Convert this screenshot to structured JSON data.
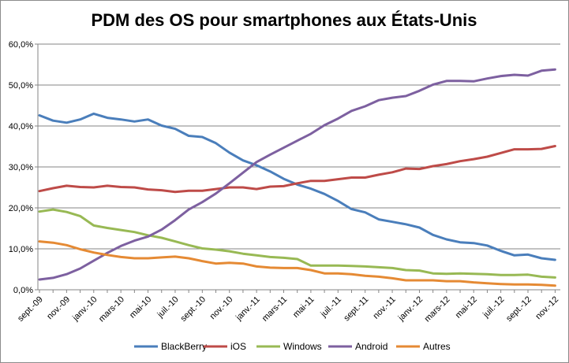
{
  "chart_data": {
    "type": "line",
    "title": "PDM des OS pour smartphones aux États-Unis",
    "xlabel": "",
    "ylabel": "",
    "ylim": [
      0,
      60
    ],
    "yticks": [
      "0,0%",
      "10,0%",
      "20,0%",
      "30,0%",
      "40,0%",
      "50,0%",
      "60,0%"
    ],
    "grid": true,
    "legend_position": "bottom",
    "x": [
      "sept.-09",
      "oct.-09",
      "nov.-09",
      "déc.-09",
      "janv.-10",
      "févr.-10",
      "mars-10",
      "avr.-10",
      "mai-10",
      "juin-10",
      "juil.-10",
      "août-10",
      "sept.-10",
      "oct.-10",
      "nov.-10",
      "déc.-10",
      "janv.-11",
      "févr.-11",
      "mars-11",
      "avr.-11",
      "mai-11",
      "juin-11",
      "juil.-11",
      "août-11",
      "sept.-11",
      "oct.-11",
      "nov.-11",
      "déc.-11",
      "janv.-12",
      "févr.-12",
      "mars-12",
      "avr.-12",
      "mai-12",
      "juin-12",
      "juil.-12",
      "août-12",
      "sept.-12",
      "oct.-12",
      "nov.-12"
    ],
    "xtick_labels": [
      "sept.-09",
      "nov.-09",
      "janv.-10",
      "mars-10",
      "mai-10",
      "juil.-10",
      "sept.-10",
      "nov.-10",
      "janv.-11",
      "mars-11",
      "mai-11",
      "juil.-11",
      "sept.-11",
      "nov.-11",
      "janv.-12",
      "mars-12",
      "mai-12",
      "juil.-12",
      "sept.-12",
      "nov.-12"
    ],
    "series": [
      {
        "name": "BlackBerry",
        "color": "#4a7ebb",
        "values": [
          42.6,
          41.3,
          40.8,
          41.6,
          43.0,
          42.0,
          41.6,
          41.1,
          41.6,
          40.1,
          39.3,
          37.6,
          37.3,
          35.8,
          33.5,
          31.6,
          30.4,
          28.9,
          27.1,
          25.7,
          24.7,
          23.4,
          21.7,
          19.7,
          18.9,
          17.2,
          16.6,
          16.0,
          15.2,
          13.4,
          12.3,
          11.6,
          11.4,
          10.8,
          9.5,
          8.4,
          8.6,
          7.7,
          7.3
        ]
      },
      {
        "name": "iOS",
        "color": "#be4b48",
        "values": [
          24.1,
          24.8,
          25.4,
          25.1,
          25.0,
          25.4,
          25.1,
          25.0,
          24.5,
          24.3,
          23.9,
          24.2,
          24.2,
          24.6,
          25.0,
          25.0,
          24.6,
          25.2,
          25.3,
          26.0,
          26.6,
          26.6,
          27.0,
          27.4,
          27.4,
          28.1,
          28.7,
          29.6,
          29.5,
          30.2,
          30.7,
          31.4,
          31.9,
          32.5,
          33.4,
          34.3,
          34.3,
          34.4,
          35.1
        ]
      },
      {
        "name": "Windows",
        "color": "#98b954",
        "values": [
          19.1,
          19.6,
          19.0,
          18.0,
          15.7,
          15.1,
          14.6,
          14.1,
          13.3,
          12.7,
          11.8,
          10.9,
          10.1,
          9.8,
          9.4,
          8.8,
          8.4,
          8.0,
          7.8,
          7.5,
          5.9,
          5.9,
          5.9,
          5.8,
          5.7,
          5.5,
          5.3,
          4.8,
          4.7,
          4.0,
          3.9,
          4.0,
          3.9,
          3.8,
          3.6,
          3.6,
          3.7,
          3.2,
          3.0
        ]
      },
      {
        "name": "Android",
        "color": "#7d60a0",
        "values": [
          2.5,
          2.9,
          3.8,
          5.2,
          7.1,
          9.0,
          10.7,
          12.0,
          13.0,
          14.7,
          17.0,
          19.6,
          21.4,
          23.5,
          26.0,
          28.6,
          31.2,
          33.0,
          34.7,
          36.4,
          38.1,
          40.2,
          41.8,
          43.7,
          44.8,
          46.3,
          46.9,
          47.3,
          48.6,
          50.1,
          51.0,
          51.0,
          50.9,
          51.6,
          52.2,
          52.5,
          52.3,
          53.5,
          53.8
        ]
      },
      {
        "name": "Autres",
        "color": "#e58a34",
        "values": [
          11.8,
          11.5,
          10.9,
          9.9,
          9.1,
          8.5,
          8.0,
          7.7,
          7.7,
          7.9,
          8.1,
          7.7,
          7.0,
          6.4,
          6.6,
          6.4,
          5.7,
          5.4,
          5.3,
          5.3,
          4.8,
          4.0,
          4.0,
          3.8,
          3.4,
          3.2,
          2.8,
          2.3,
          2.3,
          2.3,
          2.1,
          2.1,
          1.8,
          1.6,
          1.4,
          1.3,
          1.3,
          1.2,
          1.0
        ]
      }
    ]
  }
}
